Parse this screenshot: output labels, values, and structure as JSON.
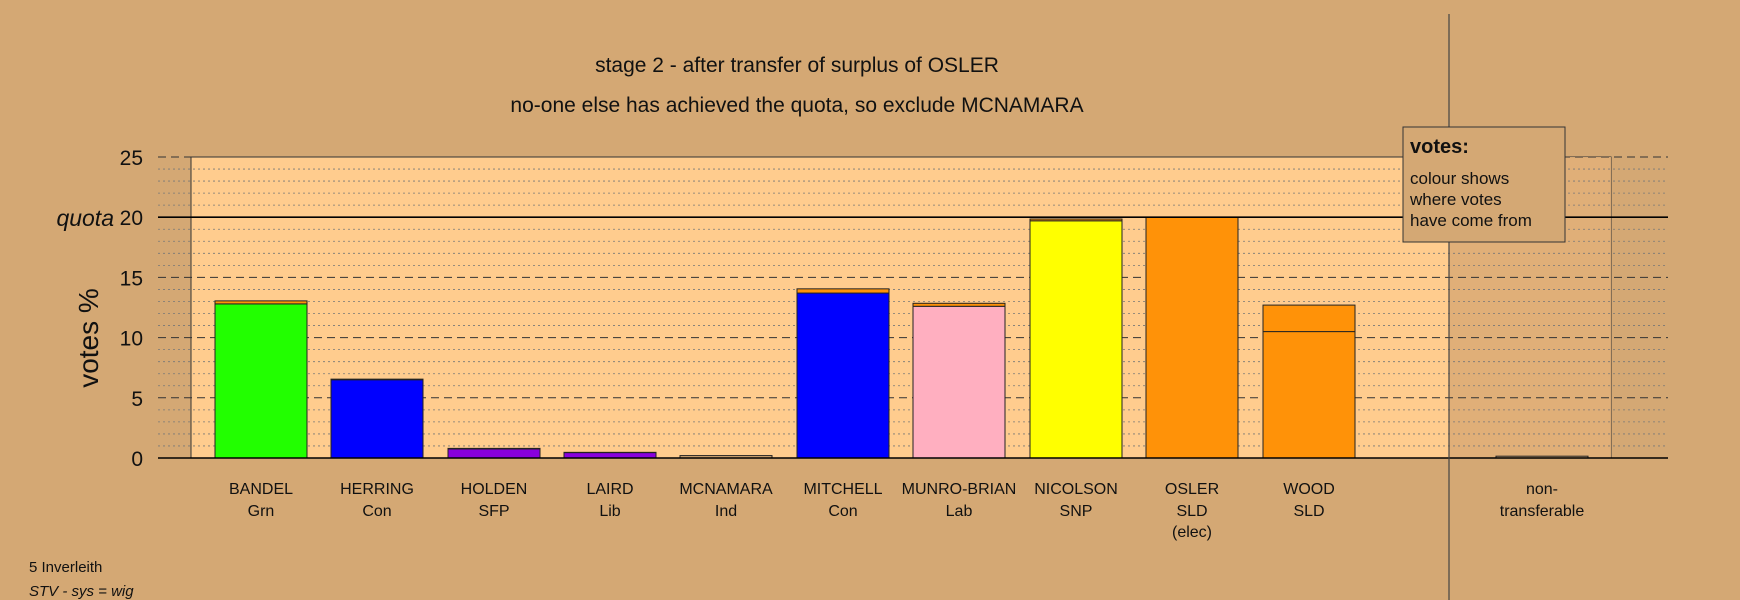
{
  "chart_data": {
    "type": "bar",
    "title": "stage 2 - after transfer of surplus of OSLER",
    "subtitle": "no-one else has achieved the quota, so exclude MCNAMARA",
    "ylabel": "votes %",
    "quota_label": "quota",
    "quota": 20,
    "ylim": [
      0,
      25
    ],
    "yticks": [
      "0",
      "5",
      "10",
      "15",
      "20",
      "25"
    ],
    "grid": "dotted every 1%, dashed every 5%",
    "categories": [
      "BANDEL",
      "HERRING",
      "HOLDEN",
      "LAIRD",
      "MCNAMARA",
      "MITCHELL",
      "MUNRO-BRIAN",
      "NICOLSON",
      "OSLER",
      "WOOD",
      "non-transferable"
    ],
    "parties": [
      "Grn",
      "Con",
      "SFP",
      "Lib",
      "Ind",
      "Con",
      "Lab",
      "SNP",
      "SLD\n(elec)",
      "SLD",
      ""
    ],
    "series": [
      {
        "values": [
          12.8,
          6.5,
          0.75,
          0.45,
          0.2,
          13.7,
          12.6,
          19.7,
          20.0,
          10.5,
          0.15
        ]
      },
      {
        "values": [
          0.25,
          0.05,
          0.05,
          0.02,
          0.0,
          0.35,
          0.25,
          0.15,
          0.0,
          2.2,
          0.0
        ]
      }
    ],
    "colors": [
      "#22ff00",
      "#0000ff",
      "#8800dd",
      "#8800dd",
      "#d4a874",
      "#0000ff",
      "#ffafc0",
      "#ffff00",
      "#ff9208",
      "#ff9208",
      "#d4a874"
    ],
    "transfer_color": "#ff9208",
    "legend": {
      "title": "votes:",
      "lines": [
        "colour shows",
        "where votes",
        "have come from"
      ],
      "position": "top-right"
    }
  },
  "footer": {
    "constituency": "5 Inverleith",
    "system": "STV - sys = wig"
  }
}
